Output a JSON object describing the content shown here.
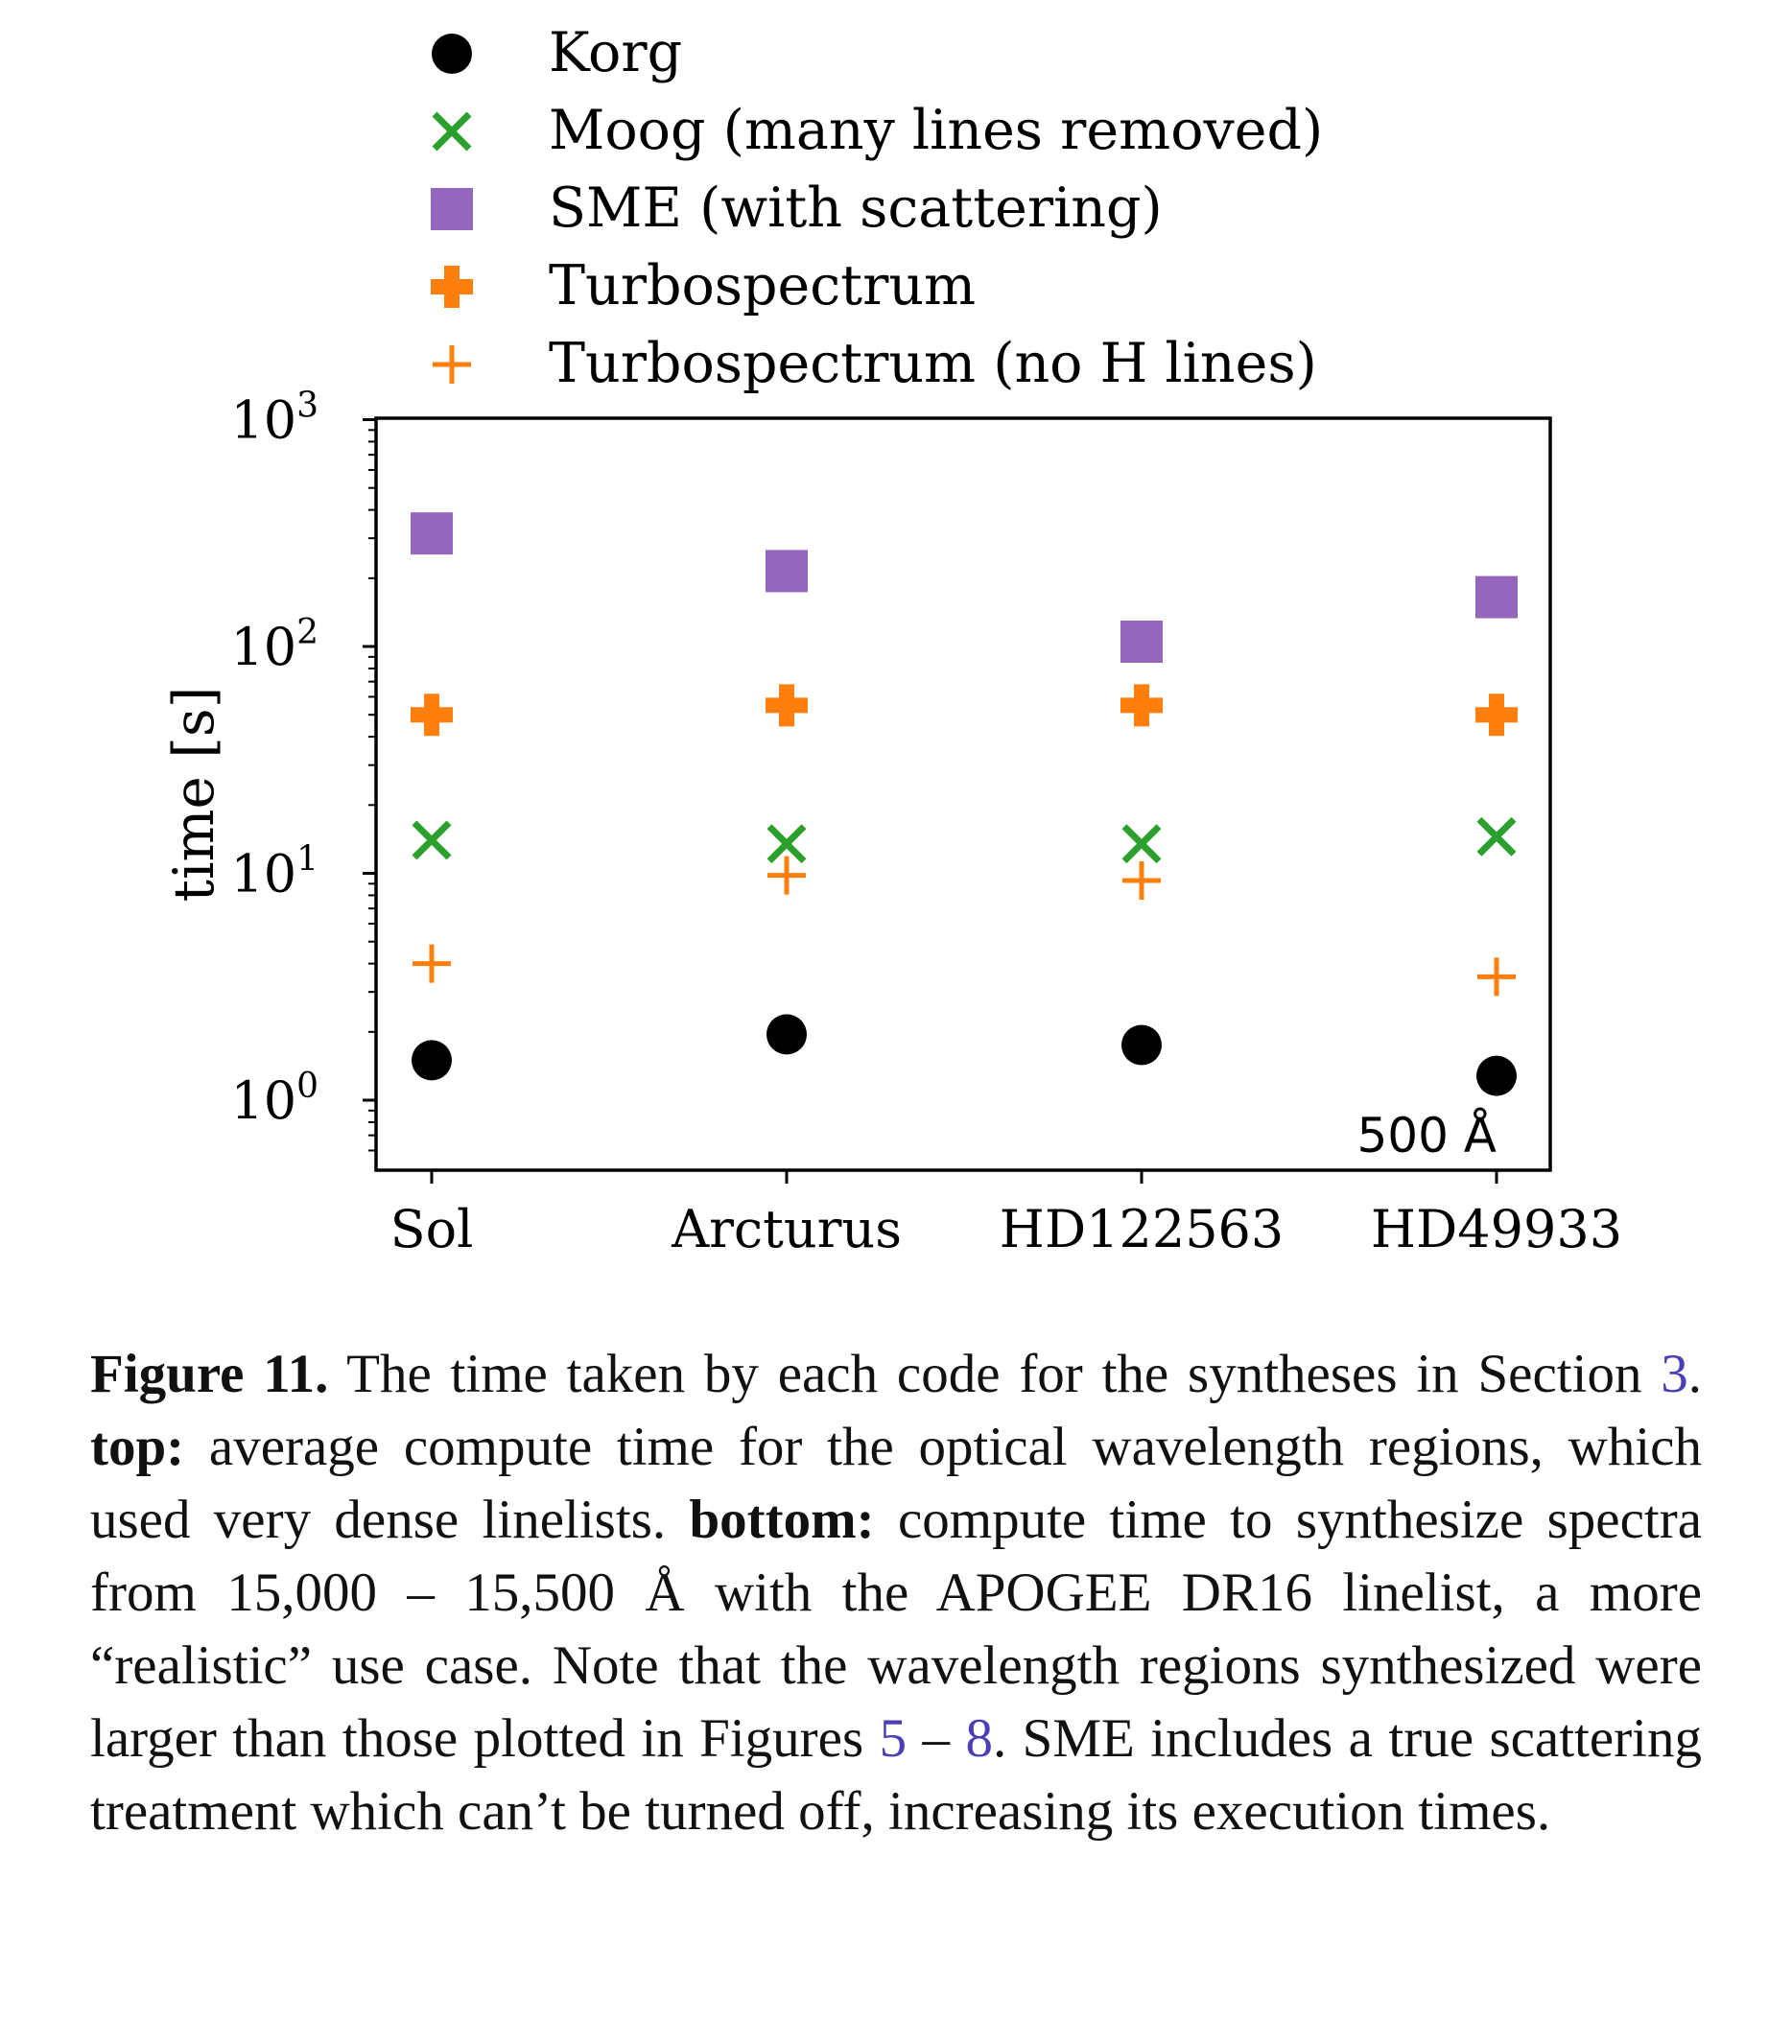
{
  "chart_data": {
    "type": "scatter",
    "categories": [
      "Sol",
      "Arcturus",
      "HD122563",
      "HD49933"
    ],
    "ylabel": "time [s]",
    "yscale": "log",
    "ylim": [
      0.55,
      1000
    ],
    "yticks": [
      1,
      10,
      100,
      1000
    ],
    "ytick_labels": {
      "base": "10",
      "exponents": [
        "0",
        "1",
        "2",
        "3"
      ]
    },
    "annotation": "500 Å",
    "legend_position": "top",
    "grid": false,
    "series": [
      {
        "name": "Korg",
        "marker": "circle",
        "color": "#000000",
        "values": [
          1.5,
          1.95,
          1.75,
          1.28
        ]
      },
      {
        "name": "Moog (many lines removed)",
        "marker": "x",
        "color": "#2ca02c",
        "values": [
          14.0,
          13.5,
          13.5,
          14.5
        ]
      },
      {
        "name": "SME (with scattering)",
        "marker": "square",
        "color": "#9467bd",
        "values": [
          315,
          215,
          105,
          165
        ]
      },
      {
        "name": "Turbospectrum",
        "marker": "plus-thick",
        "color": "#ff7f0e",
        "values": [
          50,
          55,
          55,
          50
        ]
      },
      {
        "name": "Turbospectrum (no H lines)",
        "marker": "plus-thin",
        "color": "#ff7f0e",
        "values": [
          4.0,
          9.8,
          9.3,
          3.5
        ]
      }
    ]
  },
  "caption": {
    "label": "Figure 11.",
    "t1": " The time taken by each code for the syntheses in Section ",
    "ref1": "3",
    "t2": ". ",
    "top_label": "top:",
    "t3": " average compute time for the optical wavelength regions, which used very dense linelists. ",
    "bottom_label": "bottom:",
    "t4": " compute time to synthesize spectra from 15,000 – 15,500 Å with the APOGEE DR16 linelist, a more “realistic” use case. Note that the wavelength regions synthesized were larger than those plotted in Figures ",
    "ref2": "5",
    "t5": " – ",
    "ref3": "8",
    "t6": ". SME includes a true scattering treatment which can’t be turned off, increasing its execution times."
  }
}
